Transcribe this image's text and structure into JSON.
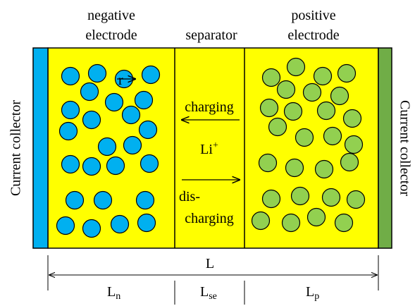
{
  "regions": {
    "negative_electrode": [
      "negative",
      "electrode"
    ],
    "separator": "separator",
    "positive_electrode": [
      "positive",
      "electrode"
    ],
    "left_collector": "Current collector",
    "right_collector": "Current collector"
  },
  "particle_radius": "r",
  "transport": {
    "charging": "charging",
    "ion": {
      "main": "Li",
      "sup": "+"
    },
    "discharging": [
      "dis-",
      "charging"
    ]
  },
  "dimensions": {
    "total": "L",
    "negative": {
      "main": "L",
      "sub": "n"
    },
    "separator": {
      "main": "L",
      "sub": "se"
    },
    "positive": {
      "main": "L",
      "sub": "p"
    }
  }
}
